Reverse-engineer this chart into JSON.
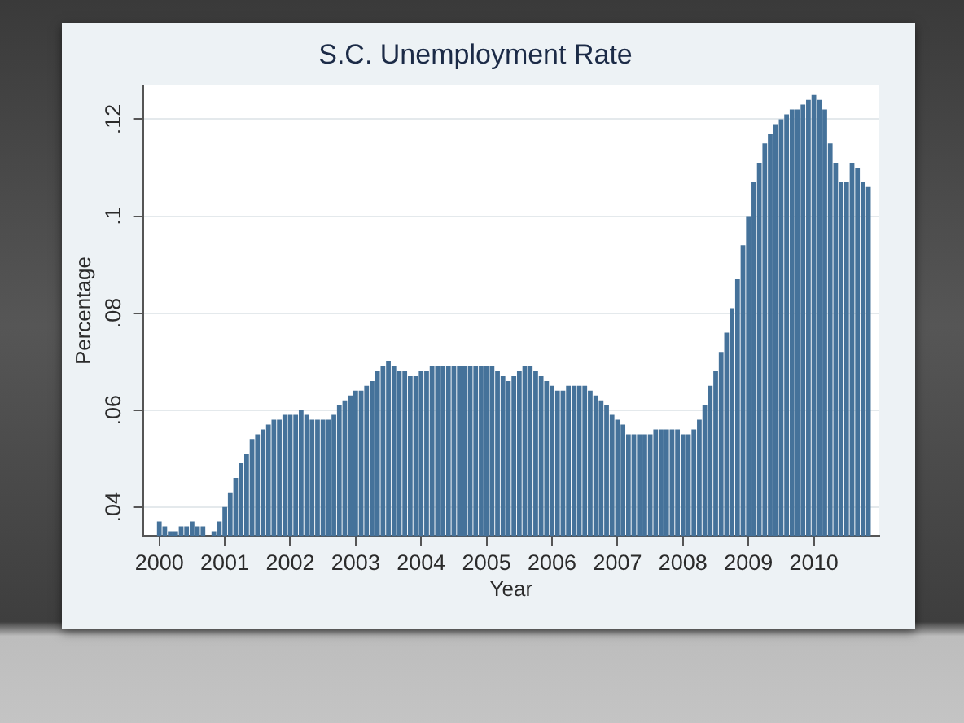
{
  "chart_data": {
    "type": "bar",
    "title": "S.C. Unemployment Rate",
    "xlabel": "Year",
    "ylabel": "Percentage",
    "x": [
      "2000-01",
      "2000-02",
      "2000-03",
      "2000-04",
      "2000-05",
      "2000-06",
      "2000-07",
      "2000-08",
      "2000-09",
      "2000-10",
      "2000-11",
      "2000-12",
      "2001-01",
      "2001-02",
      "2001-03",
      "2001-04",
      "2001-05",
      "2001-06",
      "2001-07",
      "2001-08",
      "2001-09",
      "2001-10",
      "2001-11",
      "2001-12",
      "2002-01",
      "2002-02",
      "2002-03",
      "2002-04",
      "2002-05",
      "2002-06",
      "2002-07",
      "2002-08",
      "2002-09",
      "2002-10",
      "2002-11",
      "2002-12",
      "2003-01",
      "2003-02",
      "2003-03",
      "2003-04",
      "2003-05",
      "2003-06",
      "2003-07",
      "2003-08",
      "2003-09",
      "2003-10",
      "2003-11",
      "2003-12",
      "2004-01",
      "2004-02",
      "2004-03",
      "2004-04",
      "2004-05",
      "2004-06",
      "2004-07",
      "2004-08",
      "2004-09",
      "2004-10",
      "2004-11",
      "2004-12",
      "2005-01",
      "2005-02",
      "2005-03",
      "2005-04",
      "2005-05",
      "2005-06",
      "2005-07",
      "2005-08",
      "2005-09",
      "2005-10",
      "2005-11",
      "2005-12",
      "2006-01",
      "2006-02",
      "2006-03",
      "2006-04",
      "2006-05",
      "2006-06",
      "2006-07",
      "2006-08",
      "2006-09",
      "2006-10",
      "2006-11",
      "2006-12",
      "2007-01",
      "2007-02",
      "2007-03",
      "2007-04",
      "2007-05",
      "2007-06",
      "2007-07",
      "2007-08",
      "2007-09",
      "2007-10",
      "2007-11",
      "2007-12",
      "2008-01",
      "2008-02",
      "2008-03",
      "2008-04",
      "2008-05",
      "2008-06",
      "2008-07",
      "2008-08",
      "2008-09",
      "2008-10",
      "2008-11",
      "2008-12",
      "2009-01",
      "2009-02",
      "2009-03",
      "2009-04",
      "2009-05",
      "2009-06",
      "2009-07",
      "2009-08",
      "2009-09",
      "2009-10",
      "2009-11",
      "2009-12",
      "2010-01",
      "2010-02",
      "2010-03",
      "2010-04",
      "2010-05",
      "2010-06",
      "2010-07",
      "2010-08",
      "2010-09",
      "2010-10",
      "2010-11"
    ],
    "values": [
      0.037,
      0.036,
      0.035,
      0.035,
      0.036,
      0.036,
      0.037,
      0.036,
      0.036,
      null,
      0.035,
      0.037,
      0.04,
      0.043,
      0.046,
      0.049,
      0.051,
      0.054,
      0.055,
      0.056,
      0.057,
      0.058,
      0.058,
      0.059,
      0.059,
      0.059,
      0.06,
      0.059,
      0.058,
      0.058,
      0.058,
      0.058,
      0.059,
      0.061,
      0.062,
      0.063,
      0.064,
      0.064,
      0.065,
      0.066,
      0.068,
      0.069,
      0.07,
      0.069,
      0.068,
      0.068,
      0.067,
      0.067,
      0.068,
      0.068,
      0.069,
      0.069,
      0.069,
      0.069,
      0.069,
      0.069,
      0.069,
      0.069,
      0.069,
      0.069,
      0.069,
      0.069,
      0.068,
      0.067,
      0.066,
      0.067,
      0.068,
      0.069,
      0.069,
      0.068,
      0.067,
      0.066,
      0.065,
      0.064,
      0.064,
      0.065,
      0.065,
      0.065,
      0.065,
      0.064,
      0.063,
      0.062,
      0.061,
      0.059,
      0.058,
      0.057,
      0.055,
      0.055,
      0.055,
      0.055,
      0.055,
      0.056,
      0.056,
      0.056,
      0.056,
      0.056,
      0.055,
      0.055,
      0.056,
      0.058,
      0.061,
      0.065,
      0.068,
      0.072,
      0.076,
      0.081,
      0.087,
      0.094,
      0.1,
      0.107,
      0.111,
      0.115,
      0.117,
      0.119,
      0.12,
      0.121,
      0.122,
      0.122,
      0.123,
      0.124,
      0.125,
      0.124,
      0.122,
      0.115,
      0.111,
      0.107,
      0.107,
      0.111,
      0.11,
      0.107,
      0.106
    ],
    "color": "#45729a",
    "xlim": [
      "1999-10",
      "2011-01"
    ],
    "xticks": [
      "2000",
      "2001",
      "2002",
      "2003",
      "2004",
      "2005",
      "2006",
      "2007",
      "2008",
      "2009",
      "2010"
    ],
    "ylim": [
      0.034,
      0.127
    ],
    "yticks": [
      {
        "value": 0.04,
        "label": ".04"
      },
      {
        "value": 0.06,
        "label": ".06"
      },
      {
        "value": 0.08,
        "label": ".08"
      },
      {
        "value": 0.1,
        "label": ".1"
      },
      {
        "value": 0.12,
        "label": ".12"
      }
    ],
    "grid": "y"
  }
}
